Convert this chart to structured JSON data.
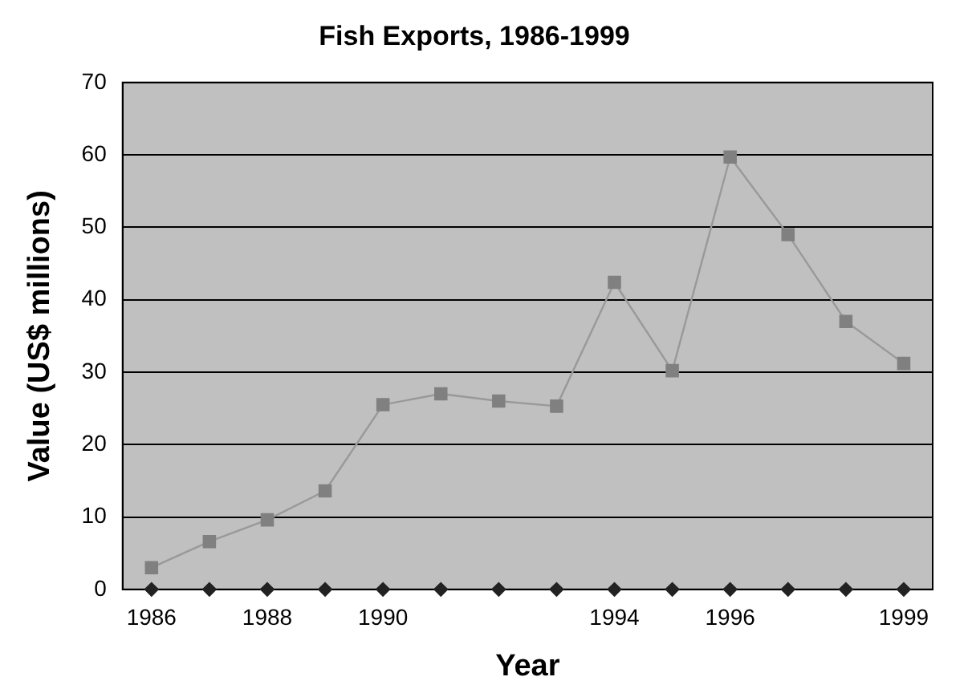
{
  "chart_data": {
    "type": "line",
    "title": "Fish Exports, 1986-1999",
    "xlabel": "Year",
    "ylabel": "Value (US$ millions)",
    "categories": [
      "1986",
      null,
      "1988",
      null,
      "1990",
      null,
      null,
      null,
      "1994",
      null,
      "1996",
      null,
      null,
      "1999"
    ],
    "series": [
      {
        "marker": "square",
        "color": "#808080",
        "values": [
          3,
          6.6,
          9.6,
          13.6,
          25.5,
          27,
          26,
          25.3,
          42.4,
          30.2,
          59.7,
          49,
          37,
          31.2
        ]
      },
      {
        "type": "scatter",
        "marker": "diamond",
        "color": "#222222",
        "values": [
          0,
          0,
          0,
          0,
          0,
          0,
          0,
          0,
          0,
          0,
          0,
          0,
          0,
          0
        ]
      }
    ],
    "ylim": [
      0,
      70
    ],
    "yticks": [
      0,
      10,
      20,
      30,
      40,
      50,
      60,
      70
    ],
    "grid": "y",
    "legend": false
  }
}
